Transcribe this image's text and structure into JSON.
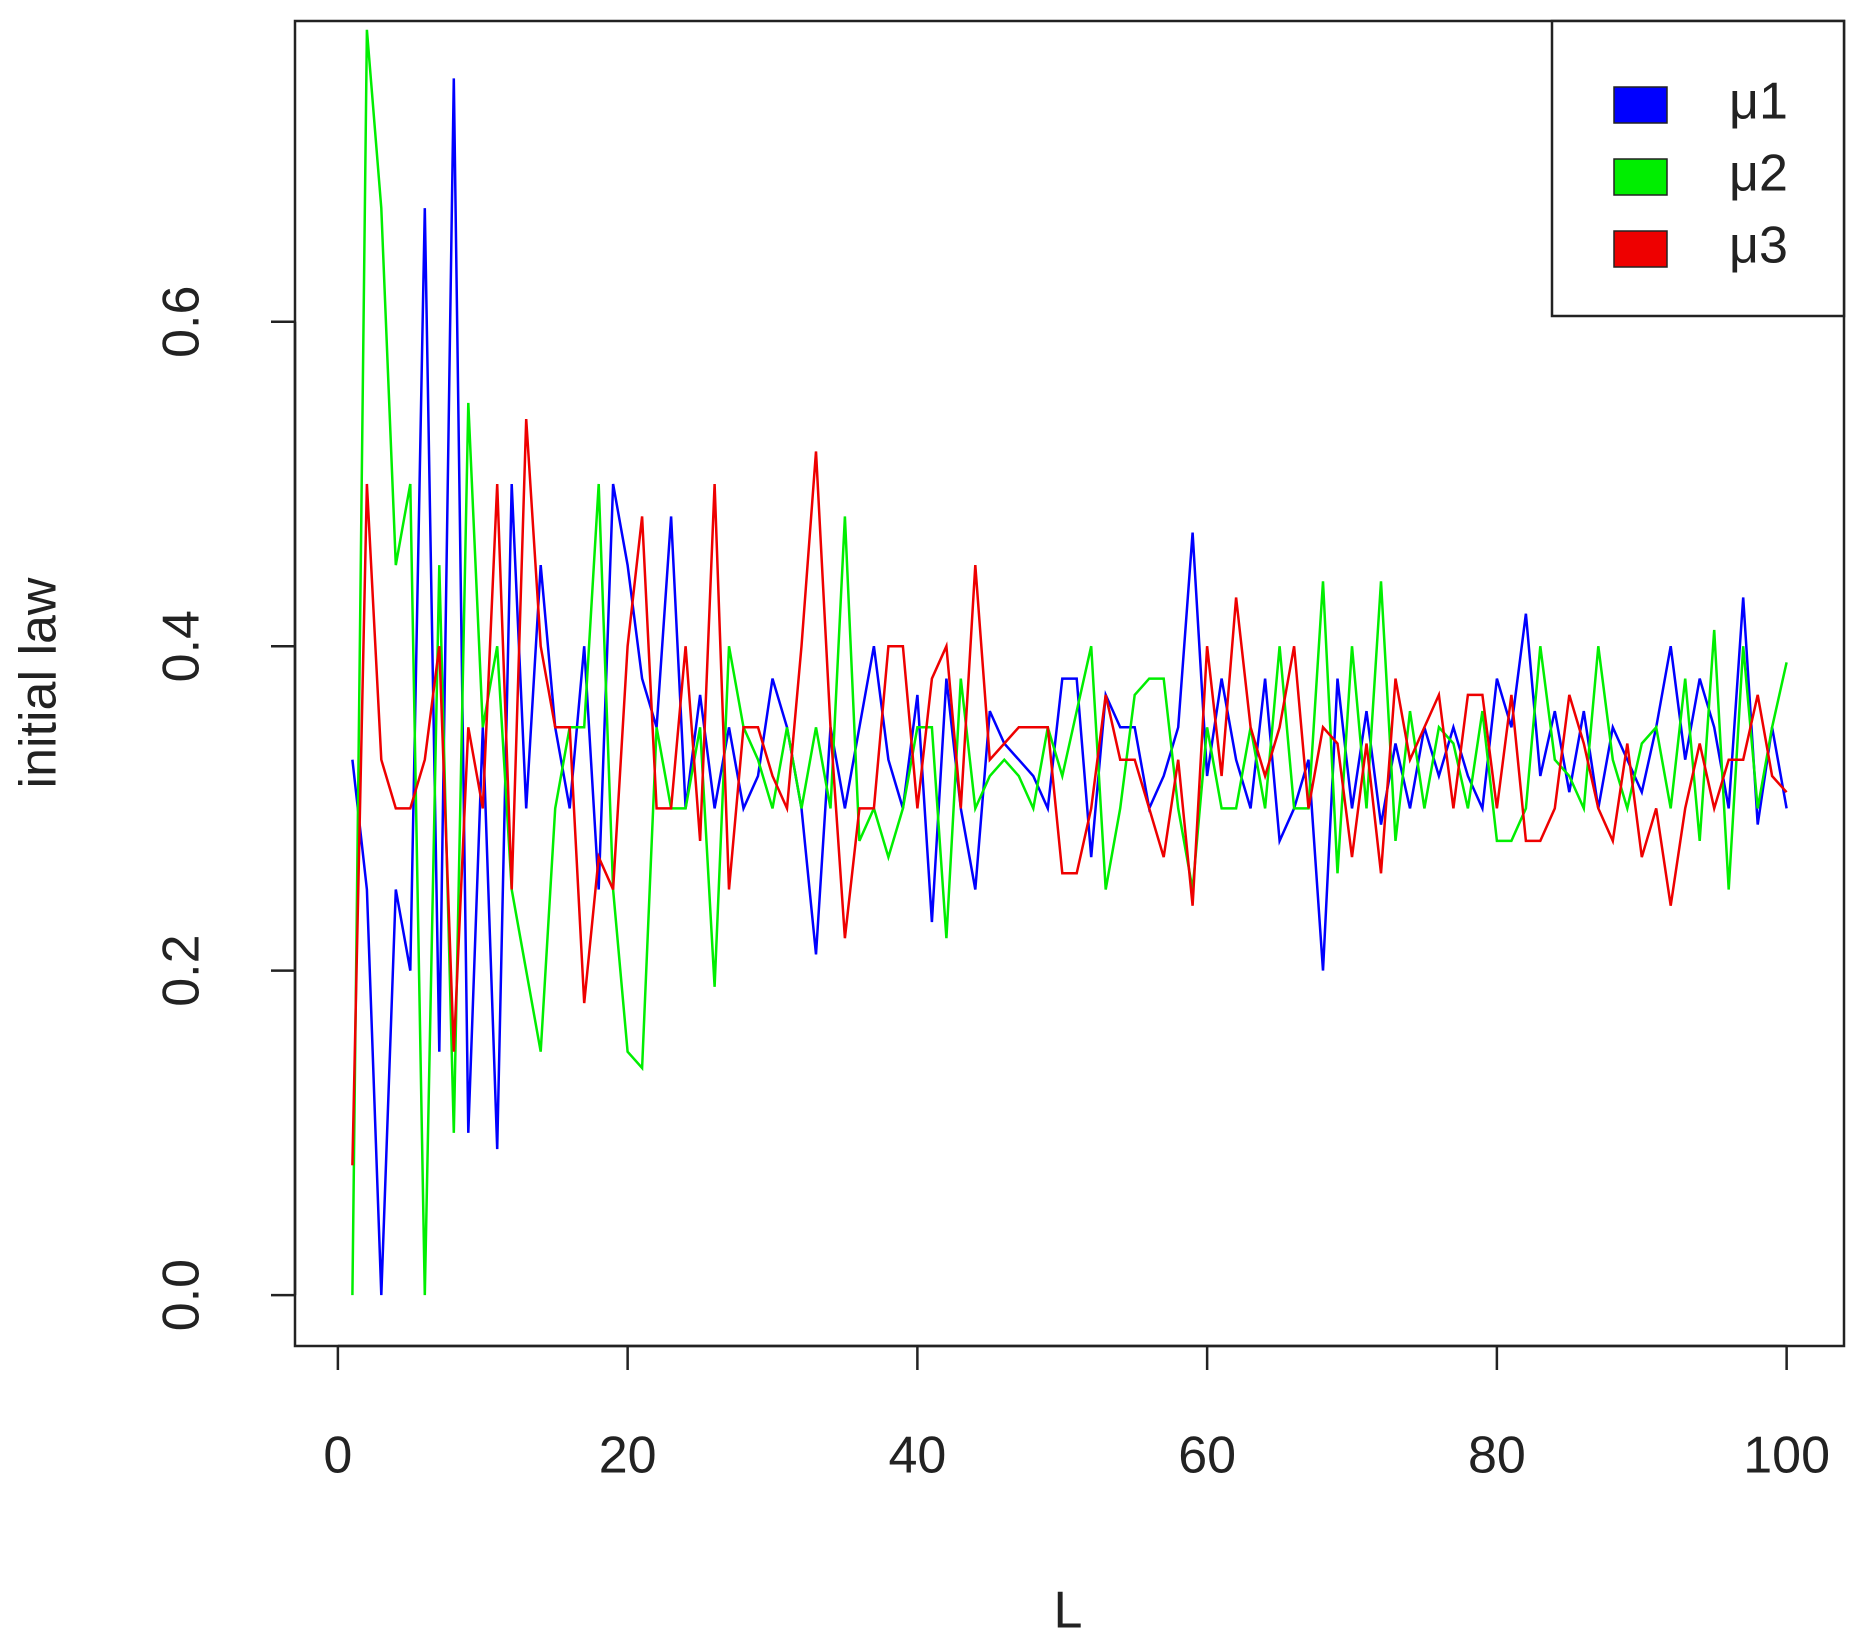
{
  "chart_data": {
    "type": "line",
    "x_label": "L",
    "y_label": "initial law",
    "x": [
      1,
      2,
      3,
      4,
      5,
      6,
      7,
      8,
      9,
      10,
      11,
      12,
      13,
      14,
      15,
      16,
      17,
      18,
      19,
      20,
      21,
      22,
      23,
      24,
      25,
      26,
      27,
      28,
      29,
      30,
      31,
      32,
      33,
      34,
      35,
      36,
      37,
      38,
      39,
      40,
      41,
      42,
      43,
      44,
      45,
      46,
      47,
      48,
      49,
      50,
      51,
      52,
      53,
      54,
      55,
      56,
      57,
      58,
      59,
      60,
      61,
      62,
      63,
      64,
      65,
      66,
      67,
      68,
      69,
      70,
      71,
      72,
      73,
      74,
      75,
      76,
      77,
      78,
      79,
      80,
      81,
      82,
      83,
      84,
      85,
      86,
      87,
      88,
      89,
      90,
      91,
      92,
      93,
      94,
      95,
      96,
      97,
      98,
      99,
      100
    ],
    "series": [
      {
        "name": "μ1",
        "color": "#0000ff",
        "values": [
          0.33,
          0.25,
          0.0,
          0.25,
          0.2,
          0.67,
          0.15,
          0.75,
          0.1,
          0.35,
          0.09,
          0.5,
          0.3,
          0.45,
          0.35,
          0.3,
          0.4,
          0.25,
          0.5,
          0.45,
          0.38,
          0.35,
          0.48,
          0.3,
          0.37,
          0.3,
          0.35,
          0.3,
          0.32,
          0.38,
          0.35,
          0.3,
          0.21,
          0.35,
          0.3,
          0.35,
          0.4,
          0.33,
          0.3,
          0.37,
          0.23,
          0.38,
          0.3,
          0.25,
          0.36,
          0.34,
          0.33,
          0.32,
          0.3,
          0.38,
          0.38,
          0.27,
          0.37,
          0.35,
          0.35,
          0.3,
          0.32,
          0.35,
          0.47,
          0.32,
          0.38,
          0.33,
          0.3,
          0.38,
          0.28,
          0.3,
          0.33,
          0.2,
          0.38,
          0.3,
          0.36,
          0.29,
          0.34,
          0.3,
          0.35,
          0.32,
          0.35,
          0.32,
          0.3,
          0.38,
          0.35,
          0.42,
          0.32,
          0.36,
          0.31,
          0.36,
          0.3,
          0.35,
          0.33,
          0.31,
          0.35,
          0.4,
          0.33,
          0.38,
          0.35,
          0.3,
          0.43,
          0.29,
          0.35,
          0.3
        ]
      },
      {
        "name": "μ2",
        "color": "#00ee00",
        "values": [
          0.0,
          0.78,
          0.67,
          0.45,
          0.5,
          0.0,
          0.45,
          0.1,
          0.55,
          0.35,
          0.4,
          0.25,
          0.2,
          0.15,
          0.3,
          0.35,
          0.35,
          0.5,
          0.25,
          0.15,
          0.14,
          0.35,
          0.3,
          0.3,
          0.35,
          0.19,
          0.4,
          0.35,
          0.33,
          0.3,
          0.35,
          0.3,
          0.35,
          0.3,
          0.48,
          0.28,
          0.3,
          0.27,
          0.3,
          0.35,
          0.35,
          0.22,
          0.38,
          0.3,
          0.32,
          0.33,
          0.32,
          0.3,
          0.35,
          0.32,
          0.36,
          0.4,
          0.25,
          0.3,
          0.37,
          0.38,
          0.38,
          0.3,
          0.25,
          0.35,
          0.3,
          0.3,
          0.35,
          0.3,
          0.4,
          0.3,
          0.3,
          0.44,
          0.26,
          0.4,
          0.3,
          0.44,
          0.28,
          0.36,
          0.3,
          0.35,
          0.34,
          0.3,
          0.36,
          0.28,
          0.28,
          0.3,
          0.4,
          0.33,
          0.32,
          0.3,
          0.4,
          0.33,
          0.3,
          0.34,
          0.35,
          0.3,
          0.38,
          0.28,
          0.41,
          0.25,
          0.4,
          0.3,
          0.35,
          0.39
        ]
      },
      {
        "name": "μ3",
        "color": "#ee0000",
        "values": [
          0.08,
          0.5,
          0.33,
          0.3,
          0.3,
          0.33,
          0.4,
          0.15,
          0.35,
          0.3,
          0.5,
          0.25,
          0.54,
          0.4,
          0.35,
          0.35,
          0.18,
          0.27,
          0.25,
          0.4,
          0.48,
          0.3,
          0.3,
          0.4,
          0.28,
          0.5,
          0.25,
          0.35,
          0.35,
          0.32,
          0.3,
          0.4,
          0.52,
          0.35,
          0.22,
          0.3,
          0.3,
          0.4,
          0.4,
          0.3,
          0.38,
          0.4,
          0.3,
          0.45,
          0.33,
          0.34,
          0.35,
          0.35,
          0.35,
          0.26,
          0.26,
          0.3,
          0.37,
          0.33,
          0.33,
          0.3,
          0.27,
          0.33,
          0.24,
          0.4,
          0.32,
          0.43,
          0.35,
          0.32,
          0.35,
          0.4,
          0.3,
          0.35,
          0.34,
          0.27,
          0.34,
          0.26,
          0.38,
          0.33,
          0.35,
          0.37,
          0.3,
          0.37,
          0.37,
          0.3,
          0.37,
          0.28,
          0.28,
          0.3,
          0.37,
          0.34,
          0.3,
          0.28,
          0.34,
          0.27,
          0.3,
          0.24,
          0.3,
          0.34,
          0.3,
          0.33,
          0.33,
          0.37,
          0.32,
          0.31
        ]
      }
    ],
    "xlim": [
      -2.96,
      103.96
    ],
    "xticks": [
      0,
      20,
      40,
      60,
      80,
      100
    ],
    "ylim": [
      -0.0314,
      0.7854
    ],
    "yticks": [
      {
        "value": 0,
        "label": "0.0"
      },
      0.2,
      0.4,
      0.6
    ],
    "legend": "top-right"
  }
}
